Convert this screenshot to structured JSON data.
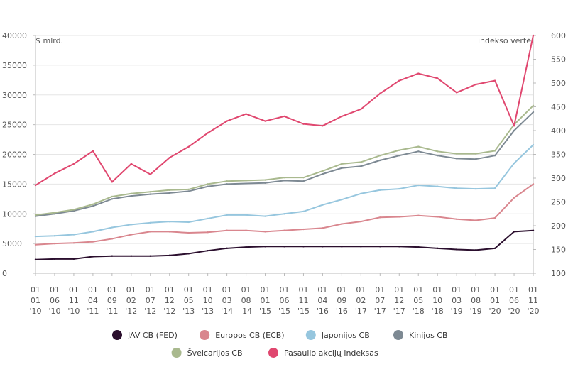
{
  "chart_data": {
    "type": "line",
    "left_axis_label": "$ mlrd.",
    "right_axis_label": "indekso vertė",
    "ylim_left": [
      0,
      40000
    ],
    "ylim_right": [
      100,
      600
    ],
    "yticks_left": [
      "0",
      "5000",
      "10000",
      "15000",
      "20000",
      "25000",
      "30000",
      "35000",
      "40000"
    ],
    "yticks_right": [
      "100",
      "150",
      "200",
      "250",
      "300",
      "350",
      "400",
      "450",
      "500",
      "550",
      "600"
    ],
    "x_tick_labels": [
      [
        "01",
        "01",
        "'10"
      ],
      [
        "01",
        "06",
        "'10"
      ],
      [
        "01",
        "11",
        "'10"
      ],
      [
        "01",
        "04",
        "'11"
      ],
      [
        "01",
        "09",
        "'11"
      ],
      [
        "01",
        "02",
        "'12"
      ],
      [
        "01",
        "07",
        "'12"
      ],
      [
        "01",
        "12",
        "'12"
      ],
      [
        "01",
        "05",
        "'13"
      ],
      [
        "01",
        "10",
        "'13"
      ],
      [
        "01",
        "03",
        "'14"
      ],
      [
        "01",
        "08",
        "'14"
      ],
      [
        "01",
        "01",
        "'15"
      ],
      [
        "01",
        "06",
        "'15"
      ],
      [
        "01",
        "11",
        "'15"
      ],
      [
        "01",
        "04",
        "'16"
      ],
      [
        "01",
        "09",
        "'16"
      ],
      [
        "01",
        "02",
        "'17"
      ],
      [
        "01",
        "07",
        "'17"
      ],
      [
        "01",
        "12",
        "'17"
      ],
      [
        "01",
        "05",
        "'18"
      ],
      [
        "01",
        "10",
        "'18"
      ],
      [
        "01",
        "03",
        "'19"
      ],
      [
        "01",
        "08",
        "'19"
      ],
      [
        "01",
        "01",
        "'20"
      ],
      [
        "01",
        "06",
        "'20"
      ],
      [
        "01",
        "11",
        "'20"
      ]
    ],
    "x_dates": [
      "2010-01",
      "2010-06",
      "2010-11",
      "2011-04",
      "2011-09",
      "2012-02",
      "2012-07",
      "2012-12",
      "2013-05",
      "2013-10",
      "2014-03",
      "2014-08",
      "2015-01",
      "2015-06",
      "2015-11",
      "2016-04",
      "2016-09",
      "2017-02",
      "2017-07",
      "2017-12",
      "2018-05",
      "2018-10",
      "2019-03",
      "2019-08",
      "2020-01",
      "2020-06",
      "2020-11"
    ],
    "series": [
      {
        "name": "JAV CB (FED)",
        "axis": "left",
        "color": "#2b0f2e",
        "values": [
          2300,
          2400,
          2400,
          2800,
          2900,
          2900,
          2900,
          3000,
          3300,
          3800,
          4200,
          4400,
          4500,
          4500,
          4500,
          4500,
          4500,
          4500,
          4500,
          4500,
          4400,
          4200,
          4000,
          3900,
          4200,
          7000,
          7200
        ]
      },
      {
        "name": "Europos CB (ECB)",
        "axis": "left",
        "color": "#d9868e",
        "values": [
          4800,
          5000,
          5100,
          5300,
          5800,
          6500,
          7000,
          7000,
          6800,
          6900,
          7200,
          7200,
          7000,
          7200,
          7400,
          7600,
          8300,
          8700,
          9400,
          9500,
          9700,
          9500,
          9100,
          8900,
          9300,
          12700,
          15000
        ]
      },
      {
        "name": "Japonijos CB",
        "axis": "left",
        "color": "#96c6de",
        "values": [
          6200,
          6300,
          6500,
          7000,
          7700,
          8200,
          8500,
          8700,
          8600,
          9200,
          9800,
          9800,
          9600,
          10000,
          10400,
          11500,
          12400,
          13400,
          14000,
          14200,
          14800,
          14600,
          14300,
          14200,
          14300,
          18500,
          21600
        ]
      },
      {
        "name": "Kinijos CB",
        "axis": "left",
        "color": "#7d8993",
        "values": [
          9600,
          10000,
          10500,
          11300,
          12500,
          13000,
          13300,
          13500,
          13800,
          14600,
          15000,
          15100,
          15200,
          15600,
          15500,
          16700,
          17700,
          18000,
          19000,
          19800,
          20500,
          19800,
          19300,
          19200,
          19800,
          24000,
          27100
        ]
      },
      {
        "name": "Šveicarijos CB",
        "axis": "left",
        "color": "#a9b98e",
        "values": [
          9800,
          10200,
          10700,
          11600,
          12900,
          13400,
          13700,
          14000,
          14100,
          15000,
          15500,
          15600,
          15700,
          16100,
          16100,
          17200,
          18400,
          18700,
          19800,
          20700,
          21300,
          20500,
          20100,
          20100,
          20600,
          25000,
          28200
        ]
      },
      {
        "name": "Pasaulio akcijų indeksas",
        "axis": "right",
        "color": "#e0476f",
        "values": [
          285,
          310,
          330,
          357,
          292,
          330,
          308,
          343,
          366,
          395,
          420,
          435,
          420,
          430,
          414,
          410,
          430,
          445,
          478,
          505,
          520,
          510,
          480,
          497,
          505,
          410,
          600
        ]
      }
    ]
  }
}
